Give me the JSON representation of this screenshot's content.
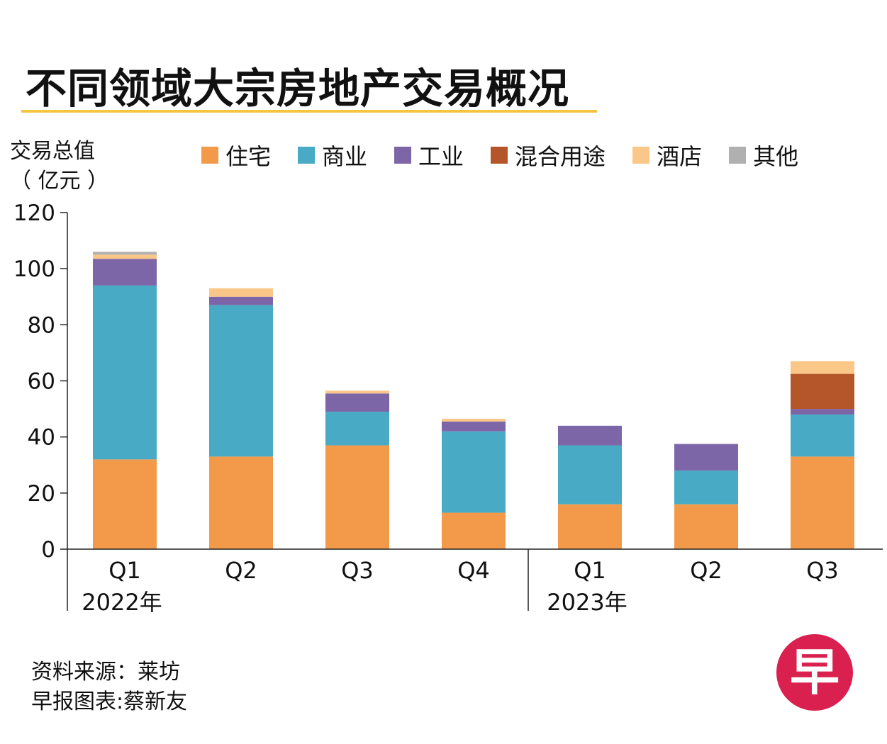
{
  "title": "不同领域大宗房地产交易概况",
  "ylabel_line1": "交易总值",
  "ylabel_line2": "（ 亿元 ）",
  "source_line1": "资料来源：莱坊",
  "source_line2": "早报图表:蔡新友",
  "logo_text": "早",
  "chart_data": {
    "type": "bar",
    "stacked": true,
    "categories": [
      "Q1",
      "Q2",
      "Q3",
      "Q4",
      "Q1",
      "Q2",
      "Q3"
    ],
    "year_groups": [
      {
        "label": "2022年",
        "start": 0,
        "end": 3
      },
      {
        "label": "2023年",
        "start": 4,
        "end": 6
      }
    ],
    "series": [
      {
        "name": "住宅",
        "color": "#f29a4a",
        "values": [
          32,
          33,
          37,
          13,
          16,
          16,
          33
        ]
      },
      {
        "name": "商业",
        "color": "#48aac4",
        "values": [
          62,
          54,
          12,
          29,
          21,
          12,
          15
        ]
      },
      {
        "name": "工业",
        "color": "#7d66a8",
        "values": [
          9.5,
          3,
          6.5,
          3.5,
          7,
          9.5,
          2
        ]
      },
      {
        "name": "混合用途",
        "color": "#b5562a",
        "values": [
          0,
          0,
          0,
          0,
          0,
          0,
          12.5
        ]
      },
      {
        "name": "酒店",
        "color": "#fbc788",
        "values": [
          1.5,
          3,
          1,
          1,
          0,
          0,
          4.5
        ]
      },
      {
        "name": "其他",
        "color": "#b0b0b0",
        "values": [
          1,
          0,
          0,
          0,
          0,
          0,
          0
        ]
      }
    ],
    "y_ticks": [
      0,
      20,
      40,
      60,
      80,
      100,
      120
    ],
    "ylim": [
      0,
      120
    ],
    "ylabel": "交易总值（亿元）",
    "xlabel": "",
    "legend_position": "top"
  }
}
